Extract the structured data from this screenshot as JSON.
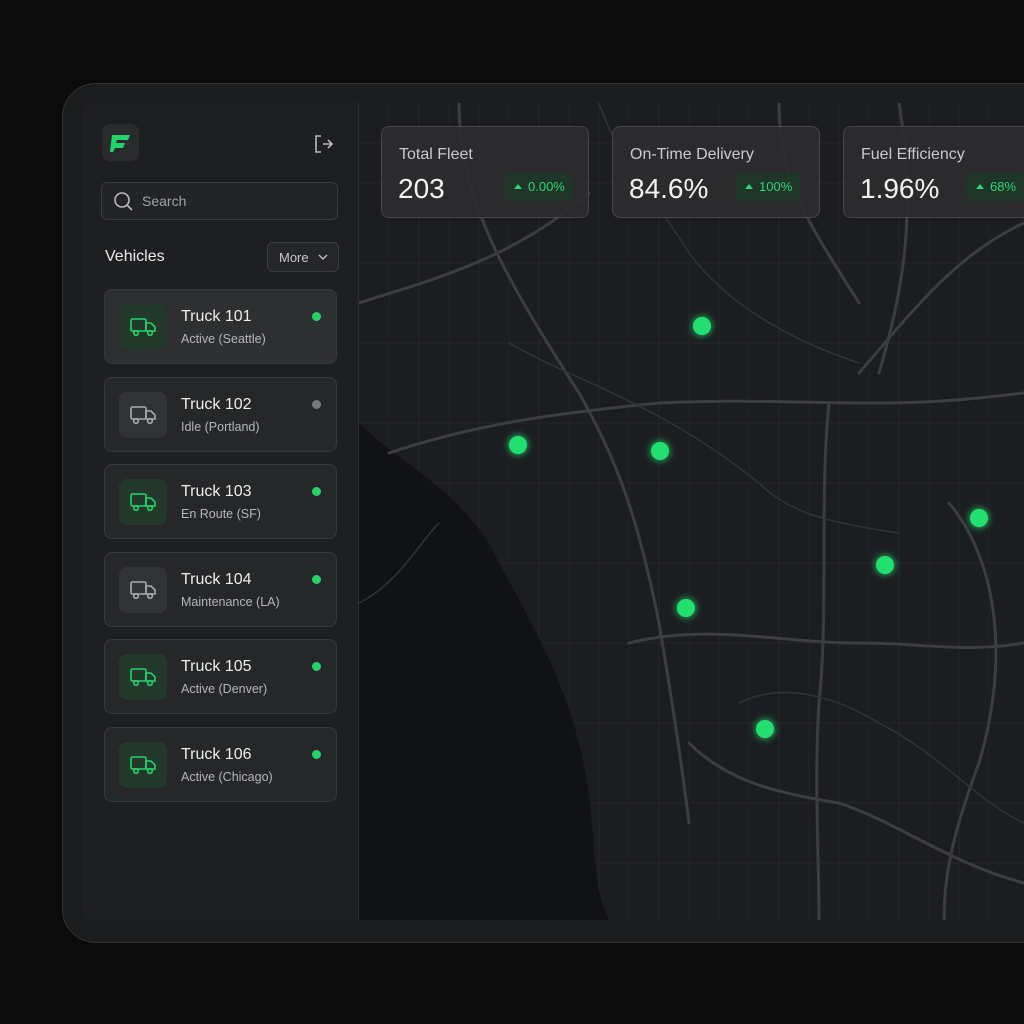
{
  "sidebar": {
    "search_placeholder": "Search",
    "section_title": "Vehicles",
    "more_button": "More",
    "vehicles": [
      {
        "name": "Truck 101",
        "status": "Active (Seattle)",
        "dot_color": "#22d46a",
        "icon_color": "#22d46a"
      },
      {
        "name": "Truck 102",
        "status": "Idle (Portland)",
        "dot_color": "#77797c",
        "icon_color": "#a8aaad"
      },
      {
        "name": "Truck 103",
        "status": "En Route (SF)",
        "dot_color": "#22d46a",
        "icon_color": "#22d46a"
      },
      {
        "name": "Truck 104",
        "status": "Maintenance (LA)",
        "dot_color": "#22d46a",
        "icon_color": "#a8aaad"
      },
      {
        "name": "Truck 105",
        "status": "Active (Denver)",
        "dot_color": "#22d46a",
        "icon_color": "#22d46a"
      },
      {
        "name": "Truck 106",
        "status": "Active (Chicago)",
        "dot_color": "#22d46a",
        "icon_color": "#22d46a"
      }
    ]
  },
  "stats": [
    {
      "label": "Total Fleet",
      "value": "203",
      "change": "0.00%"
    },
    {
      "label": "On-Time Delivery",
      "value": "84.6%",
      "change": "100%"
    },
    {
      "label": "Fuel Efficiency",
      "value": "1.96%",
      "change": "68%"
    }
  ]
}
